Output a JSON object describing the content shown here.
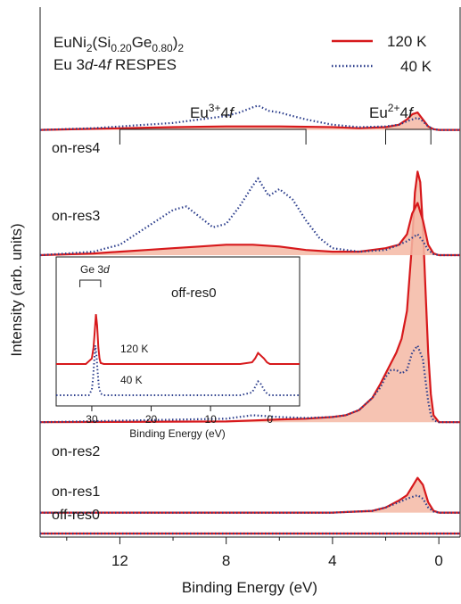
{
  "chart_data": {
    "type": "line",
    "title_line1_main": "EuNi",
    "title_line1_sub1": "2",
    "title_line1_mid": "(Si",
    "title_line1_sub2": "0.20",
    "title_line1_mid2": "Ge",
    "title_line1_sub3": "0.80",
    "title_line1_mid3": ")",
    "title_line1_sub4": "2",
    "title_line2_a": "Eu 3",
    "title_line2_d": "d",
    "title_line2_dash": "-4",
    "title_line2_f": "f",
    "title_line2_b": " RESPES",
    "xlabel": "Binding Energy (eV)",
    "ylabel": "Intensity (arb. units)",
    "xlim": [
      15,
      -0.8
    ],
    "x_reversed": true,
    "x_ticks": [
      12,
      8,
      4,
      0
    ],
    "legend": [
      {
        "label": "120 K",
        "color": "#d7191c",
        "style": "solid"
      },
      {
        "label": "40 K",
        "color": "#2c3e8c",
        "style": "dotted"
      }
    ],
    "annotations": {
      "eu3_main": "Eu",
      "eu3_sup": "3+",
      "eu3_tail": "4",
      "eu3_f": "f",
      "eu3_range": [
        12,
        5
      ],
      "eu2_main": "Eu",
      "eu2_sup": "2+",
      "eu2_tail": "4",
      "eu2_f": "f",
      "eu2_range": [
        2,
        0.3
      ]
    },
    "offsets": {
      "off-res0": 0,
      "on-res1": 6,
      "on-res2": 32,
      "on-res3": 80,
      "on-res4": 116
    },
    "spectra": [
      {
        "name": "off-res0",
        "s120": [
          [
            15,
            0
          ],
          [
            0,
            0
          ],
          [
            -0.8,
            0
          ]
        ],
        "s40": [
          [
            15,
            0
          ],
          [
            0,
            0
          ],
          [
            -0.8,
            0
          ]
        ]
      },
      {
        "name": "on-res1",
        "s120": [
          [
            15,
            0
          ],
          [
            4,
            0
          ],
          [
            2.5,
            0.5
          ],
          [
            2,
            1.5
          ],
          [
            1.5,
            3.5
          ],
          [
            1.2,
            5
          ],
          [
            1.0,
            7.5
          ],
          [
            0.8,
            10
          ],
          [
            0.6,
            8
          ],
          [
            0.4,
            3
          ],
          [
            0.2,
            0.5
          ],
          [
            0,
            0
          ],
          [
            -0.8,
            0
          ]
        ],
        "s40": [
          [
            15,
            0
          ],
          [
            4,
            0
          ],
          [
            2.5,
            0.5
          ],
          [
            2,
            1.5
          ],
          [
            1.5,
            3
          ],
          [
            1.2,
            4
          ],
          [
            1.0,
            4.5
          ],
          [
            0.8,
            5
          ],
          [
            0.6,
            4
          ],
          [
            0.4,
            1.5
          ],
          [
            0.2,
            0.3
          ],
          [
            0,
            0
          ],
          [
            -0.8,
            0
          ]
        ]
      },
      {
        "name": "on-res2",
        "s120": [
          [
            15,
            0
          ],
          [
            8,
            0.2
          ],
          [
            7,
            0.5
          ],
          [
            6,
            0.8
          ],
          [
            5,
            1
          ],
          [
            4,
            1.5
          ],
          [
            3.5,
            2
          ],
          [
            3,
            3.5
          ],
          [
            2.5,
            7
          ],
          [
            2.2,
            11
          ],
          [
            2,
            14
          ],
          [
            1.8,
            17
          ],
          [
            1.6,
            20
          ],
          [
            1.4,
            24
          ],
          [
            1.2,
            32
          ],
          [
            1.0,
            52
          ],
          [
            0.9,
            66
          ],
          [
            0.8,
            72
          ],
          [
            0.7,
            69
          ],
          [
            0.6,
            56
          ],
          [
            0.5,
            38
          ],
          [
            0.4,
            20
          ],
          [
            0.3,
            8
          ],
          [
            0.2,
            2
          ],
          [
            0,
            0
          ],
          [
            -0.8,
            0
          ]
        ],
        "s40": [
          [
            15,
            0
          ],
          [
            8,
            1
          ],
          [
            7,
            2
          ],
          [
            6,
            1.5
          ],
          [
            5,
            1.2
          ],
          [
            4,
            1.5
          ],
          [
            3.5,
            2
          ],
          [
            3,
            3.5
          ],
          [
            2.5,
            7
          ],
          [
            2.2,
            10
          ],
          [
            2,
            13
          ],
          [
            1.8,
            15
          ],
          [
            1.6,
            15
          ],
          [
            1.4,
            14
          ],
          [
            1.2,
            15
          ],
          [
            1.0,
            20
          ],
          [
            0.8,
            22
          ],
          [
            0.6,
            18
          ],
          [
            0.5,
            12
          ],
          [
            0.4,
            6
          ],
          [
            0.3,
            2
          ],
          [
            0.2,
            0.5
          ],
          [
            0,
            0
          ],
          [
            -0.8,
            0
          ]
        ]
      },
      {
        "name": "on-res3",
        "s120": [
          [
            15,
            0
          ],
          [
            13,
            0.5
          ],
          [
            12,
            1
          ],
          [
            11,
            1.5
          ],
          [
            10,
            2
          ],
          [
            9,
            2.5
          ],
          [
            8,
            3
          ],
          [
            7,
            3
          ],
          [
            6,
            2.5
          ],
          [
            5,
            1.5
          ],
          [
            4,
            1
          ],
          [
            3,
            1
          ],
          [
            2,
            2
          ],
          [
            1.5,
            3
          ],
          [
            1.2,
            6
          ],
          [
            1.0,
            12
          ],
          [
            0.8,
            15
          ],
          [
            0.6,
            10
          ],
          [
            0.4,
            3
          ],
          [
            0.2,
            0.5
          ],
          [
            0,
            0
          ],
          [
            -0.8,
            0
          ]
        ],
        "s40": [
          [
            15,
            0
          ],
          [
            13,
            1
          ],
          [
            12,
            3
          ],
          [
            11,
            8
          ],
          [
            10,
            13
          ],
          [
            9.5,
            14
          ],
          [
            9,
            11
          ],
          [
            8.5,
            8
          ],
          [
            8,
            9
          ],
          [
            7.5,
            14
          ],
          [
            7,
            20
          ],
          [
            6.8,
            22
          ],
          [
            6.4,
            17
          ],
          [
            6,
            19
          ],
          [
            5.5,
            16
          ],
          [
            5,
            10
          ],
          [
            4.5,
            5
          ],
          [
            4,
            2
          ],
          [
            3,
            1
          ],
          [
            2,
            1.5
          ],
          [
            1.5,
            3
          ],
          [
            1.2,
            4
          ],
          [
            1.0,
            5
          ],
          [
            0.8,
            6
          ],
          [
            0.6,
            4
          ],
          [
            0.4,
            1.5
          ],
          [
            0.2,
            0.3
          ],
          [
            0,
            0
          ],
          [
            -0.8,
            0
          ]
        ]
      },
      {
        "name": "on-res4",
        "s120": [
          [
            15,
            0
          ],
          [
            13,
            0.3
          ],
          [
            10,
            0.8
          ],
          [
            8,
            1
          ],
          [
            6,
            1
          ],
          [
            4,
            0.8
          ],
          [
            3,
            0.5
          ],
          [
            2,
            0.8
          ],
          [
            1.5,
            1.5
          ],
          [
            1.2,
            3
          ],
          [
            1.0,
            4.5
          ],
          [
            0.8,
            5
          ],
          [
            0.6,
            3
          ],
          [
            0.4,
            1
          ],
          [
            0.2,
            0.2
          ],
          [
            0,
            0
          ],
          [
            -0.8,
            0
          ]
        ],
        "s40": [
          [
            15,
            0
          ],
          [
            13,
            0.5
          ],
          [
            12,
            1
          ],
          [
            10,
            2
          ],
          [
            9,
            3
          ],
          [
            8,
            4
          ],
          [
            7.5,
            5
          ],
          [
            7,
            6.5
          ],
          [
            6.8,
            7
          ],
          [
            6.4,
            5.5
          ],
          [
            6,
            5
          ],
          [
            5,
            3
          ],
          [
            4,
            1.5
          ],
          [
            3,
            0.8
          ],
          [
            2,
            1
          ],
          [
            1.5,
            1.5
          ],
          [
            1.2,
            2.5
          ],
          [
            1.0,
            3
          ],
          [
            0.8,
            3.5
          ],
          [
            0.6,
            2.5
          ],
          [
            0.4,
            1
          ],
          [
            0.2,
            0.2
          ],
          [
            0,
            0
          ],
          [
            -0.8,
            0
          ]
        ]
      }
    ],
    "inset": {
      "title": "off-res0",
      "xlabel": "Binding Energy (eV)",
      "xlim": [
        36,
        -5
      ],
      "x_ticks": [
        30,
        20,
        10,
        0
      ],
      "ge_label_main": "Ge 3",
      "ge_label_d": "d",
      "ge_range": [
        32,
        28.5
      ],
      "label_120": "120 K",
      "label_40": "40 K",
      "s120": [
        [
          36,
          0
        ],
        [
          31,
          0
        ],
        [
          30,
          1
        ],
        [
          29.7,
          3
        ],
        [
          29.5,
          6
        ],
        [
          29.3,
          9
        ],
        [
          29.1,
          7
        ],
        [
          28.9,
          3
        ],
        [
          28.7,
          1
        ],
        [
          28.5,
          0.2
        ],
        [
          28,
          0
        ],
        [
          5,
          0
        ],
        [
          3,
          0.3
        ],
        [
          2.5,
          1
        ],
        [
          2,
          2
        ],
        [
          1.5,
          1.5
        ],
        [
          1,
          1
        ],
        [
          0.5,
          0.3
        ],
        [
          0,
          0
        ],
        [
          -5,
          0
        ]
      ],
      "s40": [
        [
          36,
          0
        ],
        [
          30.5,
          0
        ],
        [
          30,
          1
        ],
        [
          29.8,
          3
        ],
        [
          29.6,
          6
        ],
        [
          29.4,
          9
        ],
        [
          29.2,
          7
        ],
        [
          29,
          4
        ],
        [
          28.8,
          1.5
        ],
        [
          28.5,
          0.3
        ],
        [
          28,
          0
        ],
        [
          5,
          0
        ],
        [
          3,
          0.5
        ],
        [
          2.5,
          1.5
        ],
        [
          2,
          2.5
        ],
        [
          1.5,
          2
        ],
        [
          1,
          1
        ],
        [
          0.5,
          0.3
        ],
        [
          0,
          0
        ],
        [
          -5,
          0
        ]
      ]
    }
  }
}
